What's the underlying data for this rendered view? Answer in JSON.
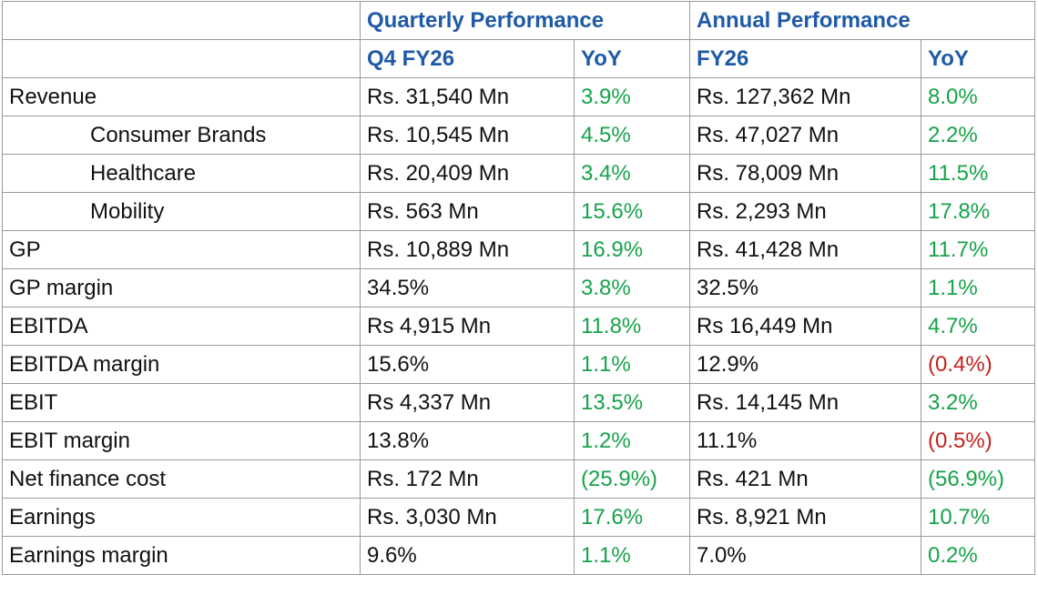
{
  "header": {
    "quarterly_title": "Quarterly Performance",
    "annual_title": "Annual Performance",
    "q_col": "Q4 FY26",
    "q_yoy": "YoY",
    "a_col": "FY26",
    "a_yoy": "YoY"
  },
  "colors": {
    "header": "#1f5aa6",
    "positive": "#16a34a",
    "negative": "#c0241f"
  },
  "rows": [
    {
      "label": "Revenue",
      "q": "Rs. 31,540 Mn",
      "q_yoy": "3.9%",
      "a": "Rs.  127,362 Mn",
      "a_yoy": "8.0%"
    },
    {
      "label": "Consumer Brands",
      "q": "Rs. 10,545 Mn",
      "q_yoy": "4.5%",
      "a": "Rs. 47,027 Mn",
      "a_yoy": "2.2%"
    },
    {
      "label": "Healthcare",
      "q": "Rs. 20,409 Mn",
      "q_yoy": "3.4%",
      "a": "Rs. 78,009 Mn",
      "a_yoy": "11.5%"
    },
    {
      "label": "Mobility",
      "q": "Rs. 563 Mn",
      "q_yoy": "15.6%",
      "a": "Rs. 2,293 Mn",
      "a_yoy": "17.8%"
    },
    {
      "label": "GP",
      "q": "Rs. 10,889 Mn",
      "q_yoy": "16.9%",
      "a": "Rs.  41,428 Mn",
      "a_yoy": "11.7%"
    },
    {
      "label": "GP margin",
      "q": "34.5%",
      "q_yoy": "3.8%",
      "a": "32.5%",
      "a_yoy": "1.1%"
    },
    {
      "label": "EBITDA",
      "q": "Rs 4,915 Mn",
      "q_yoy": "11.8%",
      "a": "Rs 16,449 Mn",
      "a_yoy": "4.7%"
    },
    {
      "label": "EBITDA margin",
      "q": "15.6%",
      "q_yoy": "1.1%",
      "a": "12.9%",
      "a_yoy": "(0.4%)"
    },
    {
      "label": "EBIT",
      "q": "Rs 4,337 Mn",
      "q_yoy": "13.5%",
      "a": "Rs.  14,145 Mn",
      "a_yoy": "3.2%"
    },
    {
      "label": "EBIT margin",
      "q": "13.8%",
      "q_yoy": "1.2%",
      "a": "11.1%",
      "a_yoy": "(0.5%)"
    },
    {
      "label": "Net finance cost",
      "q": "Rs. 172 Mn",
      "q_yoy": "(25.9%)",
      "a": "Rs. 421 Mn",
      "a_yoy": "(56.9%)"
    },
    {
      "label": "Earnings",
      "q": "Rs. 3,030 Mn",
      "q_yoy": "17.6%",
      "a": "Rs. 8,921 Mn",
      "a_yoy": "10.7%"
    },
    {
      "label": "Earnings margin",
      "q": "9.6%",
      "q_yoy": "1.1%",
      "a": "7.0%",
      "a_yoy": "0.2%"
    }
  ]
}
